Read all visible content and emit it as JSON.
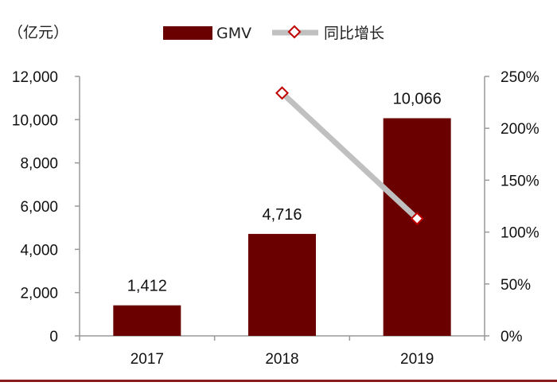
{
  "chart_data": {
    "type": "bar",
    "unit_label": "（亿元）",
    "categories": [
      "2017",
      "2018",
      "2019"
    ],
    "series": [
      {
        "name": "GMV",
        "type": "bar",
        "axis": "left",
        "values": [
          1412,
          4716,
          10066
        ],
        "data_labels": [
          "1,412",
          "4,716",
          "10,066"
        ]
      },
      {
        "name": "同比增长",
        "type": "line",
        "axis": "right",
        "values": [
          null,
          234,
          113
        ]
      }
    ],
    "left_axis": {
      "min": 0,
      "max": 12000,
      "ticks": [
        "0",
        "2,000",
        "4,000",
        "6,000",
        "8,000",
        "10,000",
        "12,000"
      ]
    },
    "right_axis": {
      "min": 0,
      "max": 250,
      "ticks": [
        "0%",
        "50%",
        "100%",
        "150%",
        "200%",
        "250%"
      ]
    },
    "legend_position": "top",
    "grid": false,
    "colors": {
      "bar": "#6b0000",
      "line": "#c0c0c0",
      "marker": "#c00000",
      "bottom_rule": "#8b1a1a"
    }
  }
}
